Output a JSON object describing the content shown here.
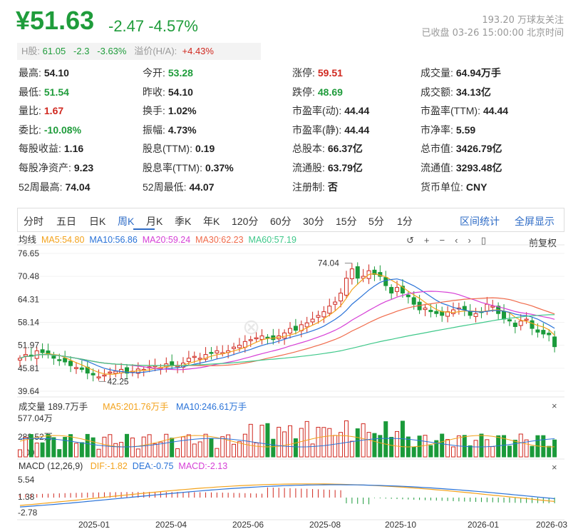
{
  "quote": {
    "price": "¥51.63",
    "change": "-2.47",
    "pct": "-4.57%",
    "followers": "193.20 万球友关注",
    "status": "已收盘 03-26 15:00:00 北京时间"
  },
  "hshare": {
    "label": "H股:",
    "price": "61.05",
    "chg": "-2.3",
    "pct": "-3.63%",
    "prem_label": "溢价(H/A):",
    "prem": "+4.43%"
  },
  "stats": [
    [
      [
        "最高:",
        "54.10",
        ""
      ],
      [
        "今开:",
        "53.28",
        "g"
      ],
      [
        "涨停:",
        "59.51",
        "r"
      ],
      [
        "成交量:",
        "64.94万手",
        ""
      ]
    ],
    [
      [
        "最低:",
        "51.54",
        "g"
      ],
      [
        "昨收:",
        "54.10",
        ""
      ],
      [
        "跌停:",
        "48.69",
        "g"
      ],
      [
        "成交额:",
        "34.13亿",
        ""
      ]
    ],
    [
      [
        "量比:",
        "1.67",
        "r"
      ],
      [
        "换手:",
        "1.02%",
        ""
      ],
      [
        "市盈率(动):",
        "44.44",
        ""
      ],
      [
        "市盈率(TTM):",
        "44.44",
        ""
      ]
    ],
    [
      [
        "委比:",
        "-10.08%",
        "g"
      ],
      [
        "振幅:",
        "4.73%",
        ""
      ],
      [
        "市盈率(静):",
        "44.44",
        ""
      ],
      [
        "市净率:",
        "5.59",
        ""
      ]
    ],
    [
      [
        "每股收益:",
        "1.16",
        ""
      ],
      [
        "股息(TTM):",
        "0.19",
        ""
      ],
      [
        "总股本:",
        "66.37亿",
        ""
      ],
      [
        "总市值:",
        "3426.79亿",
        ""
      ]
    ],
    [
      [
        "每股净资产:",
        "9.23",
        ""
      ],
      [
        "股息率(TTM):",
        "0.37%",
        ""
      ],
      [
        "流通股:",
        "63.79亿",
        ""
      ],
      [
        "流通值:",
        "3293.48亿",
        ""
      ]
    ],
    [
      [
        "52周最高:",
        "74.04",
        ""
      ],
      [
        "52周最低:",
        "44.07",
        ""
      ],
      [
        "注册制:",
        "否",
        ""
      ],
      [
        "货币单位:",
        "CNY",
        ""
      ]
    ]
  ],
  "tabs": [
    "分时",
    "五日",
    "日K",
    "周K",
    "月K",
    "季K",
    "年K",
    "120分",
    "60分",
    "30分",
    "15分",
    "5分",
    "1分"
  ],
  "active_tab": "周K",
  "tab_right": [
    "区间统计",
    "全屏显示"
  ],
  "ma_legend": {
    "title": "均线",
    "ma5": "MA5:54.80",
    "ma10": "MA10:56.86",
    "ma20": "MA20:59.24",
    "ma30": "MA30:62.23",
    "ma60": "MA60:57.19"
  },
  "fq": "前复权",
  "price_axis": [
    "76.65",
    "70.48",
    "64.31",
    "58.14",
    "51.97",
    "45.81",
    "39.64"
  ],
  "marks": {
    "high": "74.04",
    "low": "42.25"
  },
  "vol_legend": {
    "title": "成交量 189.7万手",
    "ma5": "MA5:201.76万手",
    "ma10": "MA10:246.61万手"
  },
  "vol_axis": [
    "577.04万",
    "288.52万",
    "0.00"
  ],
  "macd_legend": {
    "title": "MACD (12,26,9)",
    "dif": "DIF:-1.82",
    "dea": "DEA:-0.75",
    "macd": "MACD:-2.13"
  },
  "macd_axis": [
    "5.54",
    "1.38",
    "-2.78"
  ],
  "dates": [
    "2025-01",
    "2025-04",
    "2025-06",
    "2025-08",
    "2025-10",
    "2026-01",
    "2026-03"
  ],
  "colors": {
    "up": "#d0281f",
    "down": "#1a9a3a",
    "ma5": "#f3a21b",
    "ma10": "#2a73d8",
    "ma20": "#d63fd6",
    "ma30": "#f06a4a",
    "ma60": "#3fc88a"
  },
  "chart_data": {
    "type": "candlestick",
    "period": "weekly",
    "ylim": [
      39.64,
      76.65
    ],
    "closes": [
      48.5,
      49.5,
      49,
      50.5,
      50,
      49.5,
      48.5,
      48,
      47.5,
      46.5,
      46,
      45.5,
      44.5,
      44,
      43.5,
      44,
      44.8,
      45,
      45.5,
      44.5,
      45,
      45.6,
      45.5,
      46.2,
      46.5,
      46,
      47,
      46.5,
      46.6,
      47.2,
      48.5,
      49,
      48.5,
      49.5,
      49.8,
      50.5,
      50,
      50.5,
      51.5,
      52,
      53,
      53.5,
      54,
      54.5,
      54,
      53.5,
      54.5,
      55.3,
      56.5,
      56,
      57.5,
      58,
      59,
      60,
      61,
      62.5,
      63.6,
      66,
      70,
      72.5,
      70,
      70.5,
      72,
      71,
      70.5,
      68,
      66,
      67.5,
      66,
      65,
      63,
      61.5,
      62,
      61,
      60.5,
      60,
      61,
      61.5,
      62,
      61.5,
      60,
      60.5,
      61,
      63,
      62.5,
      60.5,
      59,
      58.5,
      57,
      58.5,
      59,
      56.5,
      55.5,
      55,
      54.8,
      51.6
    ],
    "volume_ylim": [
      0,
      577.04
    ],
    "macd_ylim": [
      -2.78,
      5.54
    ],
    "legend_values": {
      "MA5": 54.8,
      "MA10": 56.86,
      "MA20": 59.24,
      "MA30": 62.23,
      "MA60": 57.19,
      "DIF": -1.82,
      "DEA": -0.75,
      "MACD": -2.13
    }
  }
}
